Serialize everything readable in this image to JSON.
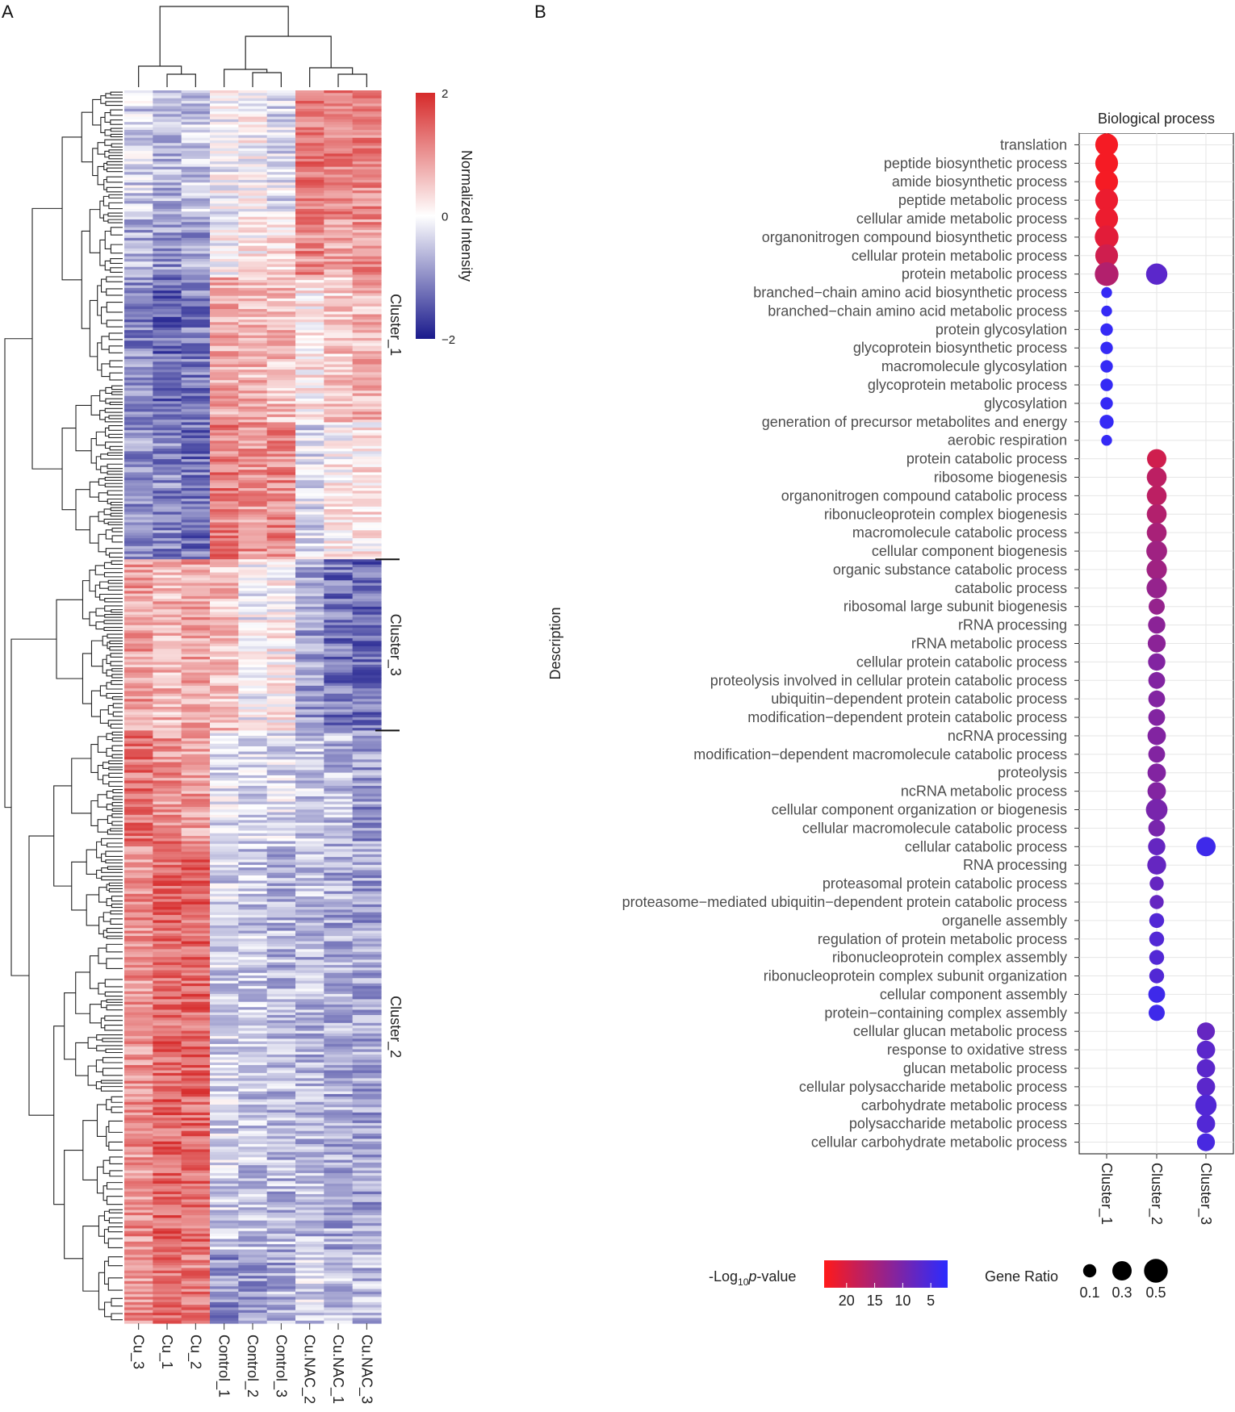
{
  "panels": {
    "a_label": "A",
    "b_label": "B"
  },
  "chart_data": [
    {
      "type": "heatmap",
      "title": "",
      "columns": [
        "Cu_3",
        "Cu_1",
        "Cu_2",
        "Control_1",
        "Control_2",
        "Control_3",
        "Cu.NAC_2",
        "Cu.NAC_1",
        "Cu.NAC_3"
      ],
      "clusters": [
        {
          "name": "Cluster_1",
          "row_blocks": [
            {
              "rows": 48,
              "values": [
                -0.4,
                -0.6,
                -0.5,
                -0.1,
                0.0,
                -0.3,
                1.3,
                1.2,
                1.1
              ]
            },
            {
              "rows": 23,
              "values": [
                -0.7,
                -0.9,
                -0.8,
                0.0,
                0.2,
                0.3,
                1.1,
                0.8,
                1.0
              ]
            },
            {
              "rows": 55,
              "values": [
                -1.0,
                -1.3,
                -1.1,
                0.8,
                0.7,
                0.6,
                0.2,
                0.5,
                0.7
              ]
            },
            {
              "rows": 52,
              "values": [
                -0.9,
                -1.0,
                -1.2,
                1.2,
                1.0,
                1.1,
                -0.3,
                0.1,
                0.2
              ]
            }
          ]
        },
        {
          "name": "Cluster_3",
          "row_blocks": [
            {
              "rows": 65,
              "values": [
                0.9,
                0.7,
                0.9,
                0.6,
                -0.1,
                0.1,
                -0.8,
                -1.2,
                -1.3
              ]
            }
          ]
        },
        {
          "name": "Cluster_2",
          "row_blocks": [
            {
              "rows": 42,
              "values": [
                1.3,
                1.0,
                0.9,
                -0.3,
                -0.4,
                -0.3,
                -0.5,
                -0.6,
                -0.9
              ]
            },
            {
              "rows": 155,
              "values": [
                1.0,
                1.4,
                1.4,
                -0.4,
                -0.5,
                -0.6,
                -0.6,
                -0.7,
                -0.8
              ]
            },
            {
              "rows": 28,
              "values": [
                1.0,
                1.3,
                1.2,
                -0.9,
                -0.8,
                -0.7,
                -0.4,
                -0.5,
                -0.6
              ]
            }
          ]
        }
      ],
      "color_scale": {
        "title": "Normalized Intensity",
        "min": -2,
        "max": 2,
        "ticks": [
          "2",
          "0",
          "−2"
        ],
        "low": "#1a1a8c",
        "mid": "#ffffff",
        "high": "#d62a2a"
      }
    },
    {
      "type": "scatter",
      "title": "Biological process",
      "ylabel": "Description",
      "x_categories": [
        "Cluster_1",
        "Cluster_2",
        "Cluster_3"
      ],
      "terms": [
        "translation",
        "peptide biosynthetic process",
        "amide biosynthetic process",
        "peptide metabolic process",
        "cellular amide metabolic process",
        "organonitrogen compound biosynthetic process",
        "cellular protein metabolic process",
        "protein metabolic process",
        "branched−chain amino acid biosynthetic process",
        "branched−chain amino acid metabolic process",
        "protein glycosylation",
        "glycoprotein biosynthetic process",
        "macromolecule glycosylation",
        "glycoprotein metabolic process",
        "glycosylation",
        "generation of precursor metabolites and energy",
        "aerobic respiration",
        "protein catabolic process",
        "ribosome biogenesis",
        "organonitrogen compound catabolic process",
        "ribonucleoprotein complex biogenesis",
        "macromolecule catabolic process",
        "cellular component biogenesis",
        "organic substance catabolic process",
        "catabolic process",
        "ribosomal large subunit biogenesis",
        "rRNA processing",
        "rRNA metabolic process",
        "cellular protein catabolic process",
        "proteolysis involved in cellular protein catabolic process",
        "ubiquitin−dependent protein catabolic process",
        "modification−dependent protein catabolic process",
        "ncRNA processing",
        "modification−dependent macromolecule catabolic process",
        "proteolysis",
        "ncRNA metabolic process",
        "cellular component organization or biogenesis",
        "cellular macromolecule catabolic process",
        "cellular catabolic process",
        "RNA processing",
        "proteasomal protein catabolic process",
        "proteasome−mediated ubiquitin−dependent protein catabolic process",
        "organelle assembly",
        "regulation of protein metabolic process",
        "ribonucleoprotein complex assembly",
        "ribonucleoprotein complex subunit organization",
        "cellular component assembly",
        "protein−containing complex assembly",
        "cellular glucan metabolic process",
        "response to oxidative stress",
        "glucan metabolic process",
        "cellular polysaccharide metabolic process",
        "carbohydrate metabolic process",
        "polysaccharide metabolic process",
        "cellular carbohydrate metabolic process"
      ],
      "points": [
        {
          "term": 0,
          "cluster": 0,
          "neg_log10_p": 23,
          "gene_ratio": 0.45
        },
        {
          "term": 1,
          "cluster": 0,
          "neg_log10_p": 23,
          "gene_ratio": 0.45
        },
        {
          "term": 2,
          "cluster": 0,
          "neg_log10_p": 23,
          "gene_ratio": 0.45
        },
        {
          "term": 3,
          "cluster": 0,
          "neg_log10_p": 22,
          "gene_ratio": 0.45
        },
        {
          "term": 4,
          "cluster": 0,
          "neg_log10_p": 22,
          "gene_ratio": 0.45
        },
        {
          "term": 5,
          "cluster": 0,
          "neg_log10_p": 21,
          "gene_ratio": 0.5
        },
        {
          "term": 6,
          "cluster": 0,
          "neg_log10_p": 19,
          "gene_ratio": 0.45
        },
        {
          "term": 7,
          "cluster": 0,
          "neg_log10_p": 16,
          "gene_ratio": 0.5
        },
        {
          "term": 7,
          "cluster": 1,
          "neg_log10_p": 7,
          "gene_ratio": 0.38
        },
        {
          "term": 8,
          "cluster": 0,
          "neg_log10_p": 3,
          "gene_ratio": 0.05
        },
        {
          "term": 9,
          "cluster": 0,
          "neg_log10_p": 3,
          "gene_ratio": 0.05
        },
        {
          "term": 10,
          "cluster": 0,
          "neg_log10_p": 3,
          "gene_ratio": 0.08
        },
        {
          "term": 11,
          "cluster": 0,
          "neg_log10_p": 3,
          "gene_ratio": 0.08
        },
        {
          "term": 12,
          "cluster": 0,
          "neg_log10_p": 3,
          "gene_ratio": 0.08
        },
        {
          "term": 13,
          "cluster": 0,
          "neg_log10_p": 3,
          "gene_ratio": 0.08
        },
        {
          "term": 14,
          "cluster": 0,
          "neg_log10_p": 3,
          "gene_ratio": 0.08
        },
        {
          "term": 15,
          "cluster": 0,
          "neg_log10_p": 3,
          "gene_ratio": 0.12
        },
        {
          "term": 16,
          "cluster": 0,
          "neg_log10_p": 3,
          "gene_ratio": 0.05
        },
        {
          "term": 17,
          "cluster": 1,
          "neg_log10_p": 19,
          "gene_ratio": 0.3
        },
        {
          "term": 18,
          "cluster": 1,
          "neg_log10_p": 17,
          "gene_ratio": 0.32
        },
        {
          "term": 19,
          "cluster": 1,
          "neg_log10_p": 17,
          "gene_ratio": 0.32
        },
        {
          "term": 20,
          "cluster": 1,
          "neg_log10_p": 16,
          "gene_ratio": 0.32
        },
        {
          "term": 21,
          "cluster": 1,
          "neg_log10_p": 15,
          "gene_ratio": 0.32
        },
        {
          "term": 22,
          "cluster": 1,
          "neg_log10_p": 14,
          "gene_ratio": 0.36
        },
        {
          "term": 23,
          "cluster": 1,
          "neg_log10_p": 14,
          "gene_ratio": 0.34
        },
        {
          "term": 24,
          "cluster": 1,
          "neg_log10_p": 13,
          "gene_ratio": 0.34
        },
        {
          "term": 25,
          "cluster": 1,
          "neg_log10_p": 13,
          "gene_ratio": 0.18
        },
        {
          "term": 26,
          "cluster": 1,
          "neg_log10_p": 12,
          "gene_ratio": 0.22
        },
        {
          "term": 27,
          "cluster": 1,
          "neg_log10_p": 12,
          "gene_ratio": 0.24
        },
        {
          "term": 28,
          "cluster": 1,
          "neg_log10_p": 11,
          "gene_ratio": 0.22
        },
        {
          "term": 29,
          "cluster": 1,
          "neg_log10_p": 11,
          "gene_ratio": 0.2
        },
        {
          "term": 30,
          "cluster": 1,
          "neg_log10_p": 11,
          "gene_ratio": 0.2
        },
        {
          "term": 31,
          "cluster": 1,
          "neg_log10_p": 11,
          "gene_ratio": 0.2
        },
        {
          "term": 32,
          "cluster": 1,
          "neg_log10_p": 11,
          "gene_ratio": 0.26
        },
        {
          "term": 33,
          "cluster": 1,
          "neg_log10_p": 11,
          "gene_ratio": 0.2
        },
        {
          "term": 34,
          "cluster": 1,
          "neg_log10_p": 11,
          "gene_ratio": 0.26
        },
        {
          "term": 35,
          "cluster": 1,
          "neg_log10_p": 11,
          "gene_ratio": 0.26
        },
        {
          "term": 36,
          "cluster": 1,
          "neg_log10_p": 10,
          "gene_ratio": 0.4
        },
        {
          "term": 37,
          "cluster": 1,
          "neg_log10_p": 10,
          "gene_ratio": 0.2
        },
        {
          "term": 38,
          "cluster": 1,
          "neg_log10_p": 8,
          "gene_ratio": 0.22
        },
        {
          "term": 38,
          "cluster": 2,
          "neg_log10_p": 4,
          "gene_ratio": 0.3
        },
        {
          "term": 39,
          "cluster": 1,
          "neg_log10_p": 8,
          "gene_ratio": 0.28
        },
        {
          "term": 40,
          "cluster": 1,
          "neg_log10_p": 8,
          "gene_ratio": 0.12
        },
        {
          "term": 41,
          "cluster": 1,
          "neg_log10_p": 8,
          "gene_ratio": 0.12
        },
        {
          "term": 42,
          "cluster": 1,
          "neg_log10_p": 6,
          "gene_ratio": 0.14
        },
        {
          "term": 43,
          "cluster": 1,
          "neg_log10_p": 6,
          "gene_ratio": 0.14
        },
        {
          "term": 44,
          "cluster": 1,
          "neg_log10_p": 6,
          "gene_ratio": 0.14
        },
        {
          "term": 45,
          "cluster": 1,
          "neg_log10_p": 6,
          "gene_ratio": 0.14
        },
        {
          "term": 46,
          "cluster": 1,
          "neg_log10_p": 4,
          "gene_ratio": 0.2
        },
        {
          "term": 47,
          "cluster": 1,
          "neg_log10_p": 4,
          "gene_ratio": 0.18
        },
        {
          "term": 48,
          "cluster": 2,
          "neg_log10_p": 8,
          "gene_ratio": 0.24
        },
        {
          "term": 49,
          "cluster": 2,
          "neg_log10_p": 7,
          "gene_ratio": 0.26
        },
        {
          "term": 50,
          "cluster": 2,
          "neg_log10_p": 7,
          "gene_ratio": 0.26
        },
        {
          "term": 51,
          "cluster": 2,
          "neg_log10_p": 7,
          "gene_ratio": 0.26
        },
        {
          "term": 52,
          "cluster": 2,
          "neg_log10_p": 6,
          "gene_ratio": 0.38
        },
        {
          "term": 53,
          "cluster": 2,
          "neg_log10_p": 6,
          "gene_ratio": 0.26
        },
        {
          "term": 54,
          "cluster": 2,
          "neg_log10_p": 5,
          "gene_ratio": 0.24
        }
      ],
      "color_legend": {
        "title_prefix": "-Log",
        "title_sub": "10",
        "title_italic": "p",
        "title_suffix": "-value",
        "min": 2,
        "max": 24,
        "ticks": [
          20,
          15,
          10,
          5
        ],
        "high_color": "#ff1a1a",
        "low_color": "#2b2bff"
      },
      "size_legend": {
        "title": "Gene Ratio",
        "values": [
          0.1,
          0.3,
          0.5
        ],
        "labels": [
          "0.1",
          "0.3",
          "0.5"
        ]
      }
    }
  ]
}
